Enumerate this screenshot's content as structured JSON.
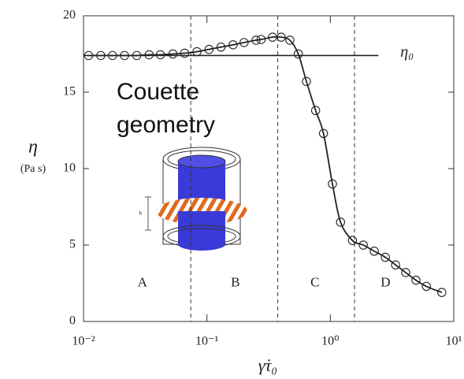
{
  "chart_data": {
    "type": "line",
    "x_label": "γ̇τ₀",
    "y_label": "η",
    "y_unit": "(Pa s)",
    "xscale": "log",
    "xlim": [
      0.01,
      10
    ],
    "ylim": [
      0,
      20
    ],
    "xticks": [
      {
        "value": 0.01,
        "label": "10⁻²"
      },
      {
        "value": 0.1,
        "label": "10⁻¹"
      },
      {
        "value": 1,
        "label": "10⁰"
      },
      {
        "value": 10,
        "label": "10¹"
      }
    ],
    "yticks": [
      0,
      5,
      10,
      15,
      20
    ],
    "series": [
      {
        "color": "#222",
        "x": [
          0.011,
          0.0138,
          0.0172,
          0.0215,
          0.027,
          0.034,
          0.042,
          0.053,
          0.066,
          0.083,
          0.104,
          0.13,
          0.163,
          0.2,
          0.25,
          0.275,
          0.34,
          0.4,
          0.47,
          0.55,
          0.64,
          0.76,
          0.88,
          1.04,
          1.21,
          1.51,
          1.85,
          2.27,
          2.79,
          3.38,
          4.08,
          4.94,
          6.0,
          8.0
        ],
        "values": [
          17.4,
          17.4,
          17.4,
          17.4,
          17.4,
          17.45,
          17.45,
          17.5,
          17.55,
          17.65,
          17.8,
          17.95,
          18.1,
          18.25,
          18.4,
          18.45,
          18.6,
          18.6,
          18.4,
          17.5,
          15.7,
          13.8,
          12.3,
          9.0,
          6.5,
          5.3,
          5.0,
          4.6,
          4.2,
          3.7,
          3.2,
          2.7,
          2.3,
          1.9
        ]
      }
    ],
    "reference_line": {
      "label": "η₀",
      "value": 17.4,
      "x_end": 2.45
    },
    "region_dividers": [
      0.074,
      0.375,
      1.57
    ],
    "regions": [
      {
        "label": "A",
        "x": 0.03
      },
      {
        "label": "B",
        "x": 0.17
      },
      {
        "label": "C",
        "x": 0.75
      },
      {
        "label": "D",
        "x": 2.8
      }
    ],
    "region_label_y": 2.5,
    "inset_title": [
      "Couette",
      "geometry"
    ],
    "inset_dimension": "h"
  }
}
